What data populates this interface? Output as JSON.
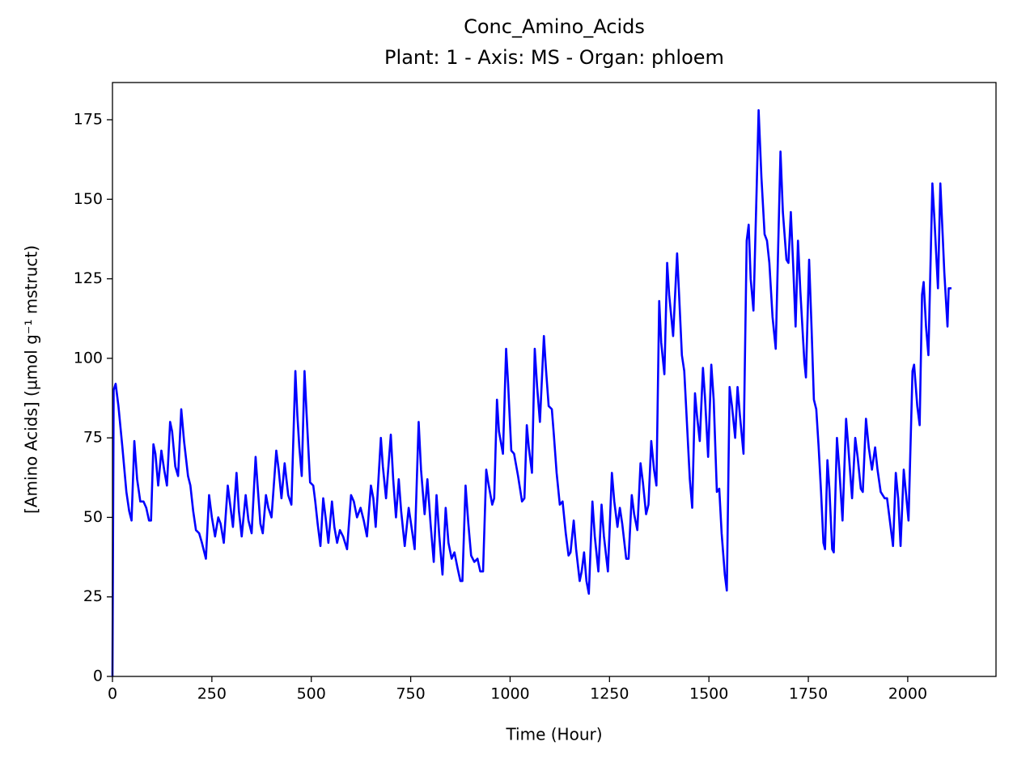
{
  "chart_data": {
    "type": "line",
    "title": "Conc_Amino_Acids",
    "subtitle": "Plant: 1 - Axis: MS - Organ: phloem",
    "x_label": "Time (Hour)",
    "y_label": "[Amino Acids] (µmol g⁻¹ mstruct)",
    "color": "#0000ff",
    "xlim": [
      0,
      2222
    ],
    "ylim": [
      0,
      186.7
    ],
    "xticks": [
      0,
      250,
      500,
      750,
      1000,
      1250,
      1500,
      1750,
      2000
    ],
    "yticks": [
      0,
      25,
      50,
      75,
      100,
      125,
      150,
      175
    ],
    "x": [
      0,
      3,
      8,
      15,
      25,
      35,
      42,
      48,
      55,
      62,
      70,
      78,
      85,
      92,
      97,
      103,
      108,
      115,
      123,
      130,
      137,
      145,
      150,
      158,
      165,
      173,
      180,
      190,
      196,
      203,
      210,
      218,
      225,
      235,
      243,
      250,
      258,
      266,
      272,
      280,
      290,
      298,
      303,
      312,
      318,
      325,
      335,
      342,
      350,
      360,
      365,
      372,
      378,
      386,
      392,
      400,
      412,
      418,
      425,
      433,
      442,
      450,
      460,
      465,
      470,
      476,
      483,
      488,
      497,
      505,
      510,
      516,
      523,
      530,
      536,
      543,
      552,
      558,
      565,
      572,
      580,
      590,
      600,
      607,
      615,
      624,
      632,
      640,
      650,
      656,
      662,
      675,
      680,
      688,
      700,
      706,
      713,
      720,
      726,
      735,
      745,
      752,
      760,
      770,
      776,
      785,
      792,
      800,
      808,
      815,
      822,
      830,
      838,
      845,
      853,
      860,
      868,
      875,
      880,
      888,
      895,
      902,
      910,
      918,
      925,
      932,
      940,
      945,
      955,
      960,
      967,
      972,
      982,
      990,
      995,
      1003,
      1010,
      1020,
      1030,
      1036,
      1042,
      1047,
      1055,
      1062,
      1068,
      1075,
      1085,
      1090,
      1097,
      1105,
      1110,
      1117,
      1125,
      1132,
      1140,
      1147,
      1152,
      1160,
      1166,
      1175,
      1180,
      1186,
      1192,
      1198,
      1207,
      1213,
      1222,
      1230,
      1236,
      1246,
      1256,
      1262,
      1270,
      1276,
      1282,
      1292,
      1298,
      1306,
      1312,
      1320,
      1328,
      1334,
      1342,
      1348,
      1355,
      1362,
      1368,
      1375,
      1380,
      1388,
      1395,
      1400,
      1410,
      1420,
      1425,
      1432,
      1438,
      1445,
      1452,
      1458,
      1465,
      1470,
      1477,
      1485,
      1490,
      1498,
      1506,
      1512,
      1520,
      1526,
      1532,
      1540,
      1545,
      1552,
      1558,
      1566,
      1572,
      1578,
      1587,
      1595,
      1600,
      1605,
      1612,
      1620,
      1625,
      1632,
      1640,
      1646,
      1652,
      1660,
      1668,
      1680,
      1686,
      1695,
      1700,
      1706,
      1712,
      1718,
      1724,
      1730,
      1740,
      1744,
      1752,
      1758,
      1764,
      1770,
      1776,
      1782,
      1788,
      1792,
      1798,
      1803,
      1810,
      1814,
      1822,
      1828,
      1836,
      1845,
      1850,
      1860,
      1868,
      1874,
      1882,
      1887,
      1895,
      1902,
      1910,
      1918,
      1924,
      1932,
      1942,
      1948,
      1958,
      1963,
      1970,
      1976,
      1982,
      1990,
      1996,
      2002,
      2012,
      2016,
      2024,
      2030,
      2036,
      2040,
      2046,
      2052,
      2062,
      2067,
      2076,
      2082,
      2086,
      2092,
      2100,
      2103,
      2110
    ],
    "values": [
      0,
      90,
      92,
      85,
      72,
      58,
      52,
      49,
      74,
      62,
      55,
      55,
      53,
      49,
      49,
      73,
      70,
      60,
      71,
      65,
      60,
      80,
      77,
      66,
      63,
      84,
      74,
      63,
      60,
      52,
      46,
      45,
      42,
      37,
      57,
      50,
      44,
      50,
      48,
      42,
      60,
      52,
      47,
      64,
      52,
      44,
      57,
      49,
      45,
      69,
      60,
      48,
      45,
      57,
      53,
      50,
      71,
      65,
      56,
      67,
      57,
      54,
      96,
      82,
      72,
      63,
      96,
      83,
      61,
      60,
      55,
      48,
      41,
      56,
      50,
      42,
      55,
      47,
      42,
      46,
      44,
      40,
      57,
      55,
      50,
      53,
      49,
      44,
      60,
      56,
      47,
      75,
      66,
      56,
      76,
      62,
      50,
      62,
      52,
      41,
      53,
      47,
      40,
      80,
      65,
      51,
      62,
      48,
      36,
      57,
      44,
      32,
      53,
      42,
      37,
      39,
      34,
      30,
      30,
      60,
      48,
      38,
      36,
      37,
      33,
      33,
      65,
      61,
      54,
      56,
      87,
      77,
      70,
      103,
      92,
      71,
      70,
      63,
      55,
      56,
      79,
      72,
      64,
      103,
      91,
      80,
      107,
      97,
      85,
      84,
      76,
      64,
      54,
      55,
      45,
      38,
      39,
      49,
      40,
      30,
      33,
      39,
      30,
      26,
      55,
      44,
      33,
      54,
      44,
      33,
      64,
      55,
      47,
      53,
      48,
      37,
      37,
      57,
      51,
      46,
      67,
      61,
      51,
      54,
      74,
      65,
      60,
      118,
      105,
      95,
      130,
      120,
      107,
      133,
      120,
      101,
      96,
      79,
      62,
      53,
      89,
      82,
      74,
      97,
      88,
      69,
      98,
      87,
      58,
      59,
      45,
      32,
      27,
      91,
      85,
      75,
      91,
      82,
      70,
      137,
      142,
      125,
      115,
      153,
      178,
      157,
      139,
      137,
      130,
      113,
      103,
      165,
      146,
      131,
      130,
      146,
      129,
      110,
      137,
      121,
      99,
      94,
      131,
      110,
      87,
      84,
      72,
      58,
      42,
      40,
      68,
      59,
      40,
      39,
      75,
      65,
      49,
      81,
      73,
      56,
      75,
      69,
      59,
      58,
      81,
      72,
      65,
      72,
      65,
      58,
      56,
      56,
      46,
      41,
      64,
      56,
      41,
      65,
      57,
      49,
      96,
      98,
      85,
      79,
      120,
      124,
      110,
      101,
      155,
      144,
      122,
      155,
      144,
      127,
      110,
      122,
      122
    ]
  }
}
